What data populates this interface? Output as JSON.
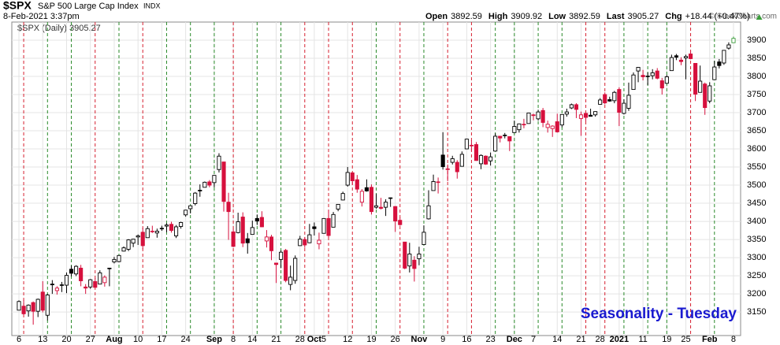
{
  "header": {
    "symbol": "$SPX",
    "name": "S&P 500 Large Cap Index",
    "exchange": "INDX",
    "timestamp": "8-Feb-2021 3:37pm",
    "copyright": "© StockCharts.com",
    "stats": [
      {
        "label": "Open",
        "value": 3892.59
      },
      {
        "label": "High",
        "value": 3909.92
      },
      {
        "label": "Low",
        "value": 3892.59
      },
      {
        "label": "Last",
        "value": 3905.27
      },
      {
        "label": "Chg",
        "value": "+18.44 (+0.47%)"
      }
    ],
    "legend": "$SPX (Daily) 3905.27"
  },
  "chart_data": {
    "type": "candlestick",
    "annotation": "Seasonality - Tuesday",
    "categories": [
      "6",
      null,
      null,
      null,
      null,
      "13",
      null,
      null,
      null,
      null,
      "20",
      null,
      null,
      null,
      null,
      "27",
      null,
      null,
      null,
      null,
      "Aug",
      null,
      null,
      null,
      null,
      "10",
      null,
      null,
      null,
      null,
      "17",
      null,
      null,
      null,
      null,
      "24",
      null,
      null,
      null,
      null,
      null,
      "Sep",
      null,
      null,
      null,
      "8",
      null,
      null,
      null,
      "14",
      null,
      null,
      null,
      null,
      "21",
      null,
      null,
      null,
      null,
      "28",
      null,
      null,
      "Oct",
      null,
      "5",
      null,
      null,
      null,
      null,
      "12",
      null,
      null,
      null,
      null,
      "19",
      null,
      null,
      null,
      null,
      "26",
      null,
      null,
      null,
      null,
      "Nov",
      null,
      null,
      null,
      null,
      "9",
      null,
      null,
      null,
      null,
      "16",
      null,
      null,
      null,
      null,
      "23",
      null,
      null,
      null,
      null,
      "Dec",
      null,
      null,
      null,
      "7",
      null,
      null,
      null,
      null,
      "14",
      null,
      null,
      null,
      null,
      "21",
      null,
      null,
      null,
      "28",
      null,
      null,
      null,
      "2021",
      null,
      null,
      null,
      null,
      "11",
      null,
      null,
      null,
      null,
      "19",
      null,
      null,
      null,
      "25",
      null,
      null,
      null,
      null,
      "Feb",
      null,
      null,
      null,
      null,
      "8"
    ],
    "bold_categories": [
      "Aug",
      "Sep",
      "Oct",
      "Nov",
      "Dec",
      "2021",
      "Feb"
    ],
    "open": [
      3155,
      3166,
      3153,
      3176,
      3152,
      3205,
      3141,
      3225,
      3209,
      3224,
      3224,
      3268,
      3255,
      3271,
      3219,
      3219,
      3234,
      3227,
      3231,
      3270,
      3288,
      3289,
      3318,
      3323,
      3340,
      3357,
      3370,
      3355,
      3372,
      3368,
      3380,
      3387,
      3392,
      3360,
      3386,
      3418,
      3435,
      3449,
      3486,
      3494,
      3509,
      3507,
      3543,
      3564,
      3453,
      3371,
      3369,
      3412,
      3352,
      3364,
      3408,
      3411,
      3346,
      3357,
      3285,
      3295,
      3320,
      3226,
      3237,
      3333,
      3350,
      3341,
      3385,
      3338,
      3367,
      3408,
      3384,
      3434,
      3459,
      3500,
      3534,
      3515,
      3453,
      3493,
      3494,
      3439,
      3439,
      3439,
      3464,
      3441,
      3403,
      3343,
      3277,
      3293,
      3297,
      3336,
      3407,
      3485,
      3508,
      3583,
      3543,
      3563,
      3563,
      3552,
      3600,
      3610,
      3612,
      3559,
      3580,
      3567,
      3594,
      3635,
      3638,
      3634,
      3645,
      3653,
      3668,
      3670,
      3694,
      3683,
      3706,
      3659,
      3656,
      3675,
      3666,
      3696,
      3713,
      3722,
      3684,
      3698,
      3693,
      3694,
      3723,
      3750,
      3736,
      3733,
      3764,
      3698,
      3712,
      3764,
      3815,
      3803,
      3801,
      3802,
      3815,
      3788,
      3781,
      3816,
      3857,
      3845,
      3851,
      3862,
      3836,
      3756,
      3779,
      3732,
      3791,
      3840,
      3837,
      3878,
      3893
    ],
    "high": [
      3182,
      3184,
      3171,
      3179,
      3187,
      3235,
      3200,
      3238,
      3221,
      3233,
      3259,
      3278,
      3279,
      3280,
      3227,
      3241,
      3243,
      3265,
      3251,
      3272,
      3302,
      3307,
      3331,
      3351,
      3352,
      3364,
      3382,
      3387,
      3388,
      3380,
      3388,
      3395,
      3399,
      3390,
      3399,
      3432,
      3444,
      3481,
      3502,
      3510,
      3514,
      3528,
      3588,
      3564,
      3479,
      3379,
      3424,
      3425,
      3368,
      3402,
      3419,
      3428,
      3376,
      3363,
      3285,
      3320,
      3324,
      3278,
      3306,
      3360,
      3357,
      3393,
      3397,
      3369,
      3409,
      3432,
      3426,
      3447,
      3482,
      3550,
      3534,
      3528,
      3489,
      3516,
      3502,
      3476,
      3465,
      3461,
      3466,
      3442,
      3410,
      3342,
      3341,
      3304,
      3330,
      3389,
      3486,
      3529,
      3521,
      3646,
      3557,
      3581,
      3569,
      3593,
      3628,
      3624,
      3619,
      3585,
      3582,
      3590,
      3643,
      3635,
      3644,
      3634,
      3678,
      3670,
      3683,
      3699,
      3697,
      3708,
      3713,
      3678,
      3665,
      3697,
      3695,
      3711,
      3725,
      3726,
      3703,
      3698,
      3711,
      3704,
      3740,
      3756,
      3744,
      3760,
      3770,
      3737,
      3783,
      3811,
      3826,
      3818,
      3811,
      3820,
      3823,
      3796,
      3804,
      3860,
      3862,
      3853,
      3860,
      3870,
      3836,
      3830,
      3783,
      3784,
      3843,
      3848,
      3872,
      3894,
      3910
    ],
    "low": [
      3155,
      3142,
      3137,
      3115,
      3136,
      3149,
      3127,
      3200,
      3198,
      3205,
      3202,
      3248,
      3249,
      3221,
      3200,
      3214,
      3217,
      3227,
      3220,
      3221,
      3284,
      3287,
      3317,
      3318,
      3329,
      3335,
      3323,
      3355,
      3368,
      3355,
      3374,
      3370,
      3369,
      3354,
      3380,
      3413,
      3422,
      3444,
      3468,
      3495,
      3494,
      3494,
      3535,
      3427,
      3349,
      3329,
      3367,
      3329,
      3311,
      3364,
      3390,
      3384,
      3328,
      3293,
      3230,
      3271,
      3232,
      3210,
      3228,
      3333,
      3327,
      3340,
      3361,
      3323,
      3367,
      3354,
      3384,
      3428,
      3458,
      3496,
      3501,
      3479,
      3441,
      3482,
      3419,
      3435,
      3433,
      3415,
      3440,
      3371,
      3388,
      3268,
      3259,
      3234,
      3279,
      3336,
      3405,
      3485,
      3477,
      3543,
      3511,
      3557,
      3518,
      3552,
      3600,
      3594,
      3567,
      3544,
      3556,
      3554,
      3594,
      3618,
      3629,
      3594,
      3645,
      3645,
      3657,
      3670,
      3679,
      3678,
      3660,
      3645,
      3633,
      3645,
      3660,
      3689,
      3710,
      3685,
      3636,
      3676,
      3689,
      3689,
      3723,
      3723,
      3730,
      3726,
      3663,
      3695,
      3705,
      3764,
      3784,
      3789,
      3776,
      3792,
      3792,
      3750,
      3780,
      3816,
      3845,
      3831,
      3792,
      3847,
      3732,
      3756,
      3694,
      3726,
      3791,
      3822,
      3832,
      3874,
      3893
    ],
    "close": [
      3179,
      3145,
      3169,
      3152,
      3185,
      3155,
      3197,
      3227,
      3216,
      3225,
      3251,
      3257,
      3276,
      3236,
      3216,
      3239,
      3218,
      3258,
      3246,
      3271,
      3295,
      3306,
      3327,
      3349,
      3351,
      3360,
      3333,
      3380,
      3373,
      3373,
      3381,
      3390,
      3375,
      3385,
      3397,
      3431,
      3443,
      3478,
      3484,
      3508,
      3500,
      3527,
      3580,
      3455,
      3427,
      3331,
      3399,
      3340,
      3341,
      3383,
      3401,
      3385,
      3357,
      3319,
      3281,
      3315,
      3237,
      3246,
      3298,
      3351,
      3335,
      3363,
      3380,
      3348,
      3408,
      3361,
      3419,
      3447,
      3477,
      3535,
      3512,
      3489,
      3483,
      3484,
      3427,
      3443,
      3436,
      3453,
      3465,
      3401,
      3391,
      3271,
      3310,
      3270,
      3310,
      3370,
      3443,
      3510,
      3509,
      3551,
      3545,
      3573,
      3537,
      3585,
      3627,
      3610,
      3568,
      3582,
      3558,
      3578,
      3635,
      3630,
      3638,
      3622,
      3662,
      3669,
      3667,
      3699,
      3692,
      3702,
      3673,
      3668,
      3663,
      3647,
      3695,
      3702,
      3722,
      3709,
      3694,
      3687,
      3690,
      3703,
      3735,
      3727,
      3732,
      3756,
      3701,
      3726,
      3748,
      3804,
      3825,
      3799,
      3801,
      3810,
      3795,
      3768,
      3799,
      3852,
      3853,
      3841,
      3855,
      3849,
      3751,
      3787,
      3714,
      3774,
      3826,
      3830,
      3872,
      3887,
      3905
    ],
    "vlines": [
      1,
      6,
      11,
      16,
      21,
      26,
      31,
      36,
      41,
      45,
      50,
      55,
      60,
      65,
      70,
      75,
      80,
      85,
      90,
      95,
      100,
      104,
      109,
      114,
      119,
      123,
      127,
      132,
      136,
      141,
      146
    ],
    "up_color": "#000000",
    "down_color": "#d6103d",
    "last_color": "#3c9c3c",
    "vline_up_color": "#2a8a2a",
    "vline_down_color": "#d62030",
    "annotation_color": "#1a1ad0",
    "ylim": [
      3085,
      3950
    ],
    "yticks": [
      3150,
      3200,
      3250,
      3300,
      3350,
      3400,
      3450,
      3500,
      3550,
      3600,
      3650,
      3700,
      3750,
      3800,
      3850,
      3900
    ],
    "grid": true
  }
}
